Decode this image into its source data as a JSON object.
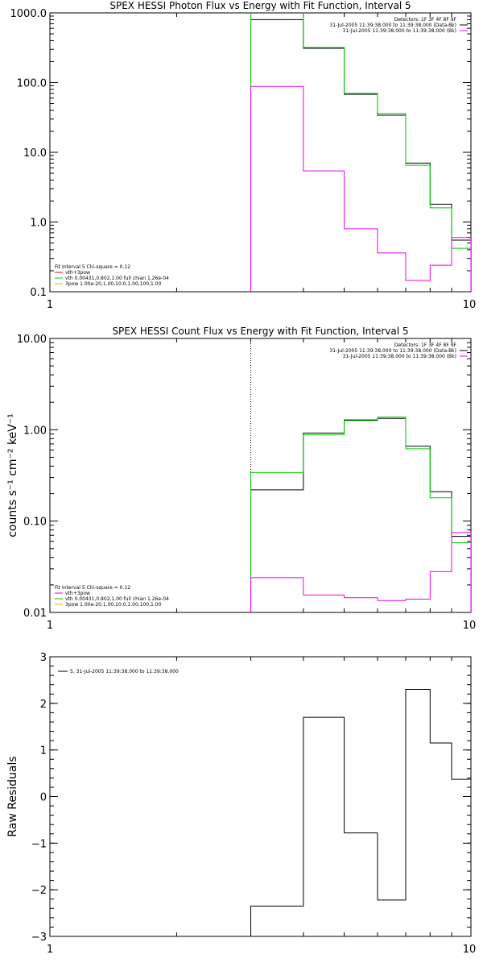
{
  "chart_data": [
    {
      "type": "line",
      "title": "SPEX HESSI Photon Flux vs Energy with Fit Function, Interval 5",
      "xlabel": "",
      "ylabel": "",
      "xscale": "log",
      "yscale": "log",
      "xlim": [
        1,
        10
      ],
      "ylim": [
        0.1,
        1000
      ],
      "x_ticks": [
        "1",
        "10"
      ],
      "y_ticks": [
        {
          "v": 0.1,
          "label": "0.1"
        },
        {
          "v": 1,
          "label": "1.0"
        },
        {
          "v": 10,
          "label": "10.0"
        },
        {
          "v": 100,
          "label": "100.0"
        },
        {
          "v": 1000,
          "label": "1000.0"
        }
      ],
      "x_edges": [
        3,
        4,
        5,
        6,
        7,
        8,
        9,
        10
      ],
      "vline_x": 3,
      "series": [
        {
          "name": "",
          "color": "#000000",
          "values": [
            800,
            310,
            68,
            34,
            7,
            1.8,
            0.55
          ]
        },
        {
          "name": "",
          "color": "#00cc00",
          "values": [
            1500,
            320,
            70,
            36,
            6.5,
            1.6,
            0.42
          ]
        },
        {
          "name": "",
          "color": "#ee00ee",
          "values": [
            88,
            5.4,
            0.8,
            0.36,
            0.145,
            0.24,
            0.6
          ]
        }
      ],
      "legend_right": {
        "lines": [
          "Detectors: 1F 3F 4F 8F 9F",
          "31-Jul-2005 11:39:38.000 to 11:39:38.000 (Data-Bk)",
          "31-Jul-2005 11:39:38.000 to 11:39:38.000 (Bk)"
        ],
        "colors": [
          "",
          "#000000",
          "#ee00ee"
        ]
      },
      "legend_left": {
        "lines": [
          "Fit Interval 5   Chi-square = 0.12",
          "vth+3pow",
          "vth 0.00431,0.802,1.00   full chian 1.26e-04",
          "3pow 1.00e-20,1.00,10.0,1.00,100,1.00"
        ],
        "colors": [
          "",
          "#ff0000",
          "#00cc00",
          "#e8b000"
        ]
      }
    },
    {
      "type": "line",
      "title": "SPEX HESSI Count Flux vs Energy with Fit Function, Interval 5",
      "xlabel": "",
      "ylabel": "counts s⁻¹ cm⁻² keV⁻¹",
      "xscale": "log",
      "yscale": "log",
      "xlim": [
        1,
        10
      ],
      "ylim": [
        0.01,
        10
      ],
      "x_ticks": [
        "1",
        "10"
      ],
      "y_ticks": [
        {
          "v": 0.01,
          "label": "0.01"
        },
        {
          "v": 0.1,
          "label": "0.10"
        },
        {
          "v": 1,
          "label": "1.00"
        },
        {
          "v": 10,
          "label": "10.00"
        }
      ],
      "x_edges": [
        3,
        4,
        5,
        6,
        7,
        8,
        9,
        10
      ],
      "vline_x": 3,
      "series": [
        {
          "name": "",
          "color": "#000000",
          "values": [
            0.22,
            0.92,
            1.28,
            1.33,
            0.66,
            0.21,
            0.068
          ]
        },
        {
          "name": "",
          "color": "#00cc00",
          "values": [
            0.34,
            0.88,
            1.26,
            1.38,
            0.62,
            0.18,
            0.058
          ]
        },
        {
          "name": "",
          "color": "#ee00ee",
          "values": [
            0.024,
            0.0155,
            0.0145,
            0.0135,
            0.014,
            0.028,
            0.075
          ]
        }
      ],
      "legend_right": {
        "lines": [
          "Detectors: 1F 3F 4F 8F 9F",
          "31-Jul-2005 11:39:38.000 to 11:39:38.000 (Data-Bk)",
          "31-Jul-2005 11:39:38.000 to 11:39:38.000 (Bk)"
        ],
        "colors": [
          "",
          "#000000",
          "#ee00ee"
        ]
      },
      "legend_left": {
        "lines": [
          "Fit Interval 5   Chi-square = 0.12",
          "vth+3pow",
          "vth 0.00431,0.802,1.00   full chian 1.26e-04",
          "3pow 1.00e-20,1.00,10.0,1.00,100,1.00"
        ],
        "colors": [
          "",
          "#ee00ee",
          "#00cc00",
          "#e8b000"
        ]
      }
    },
    {
      "type": "line",
      "title": "",
      "xlabel": "",
      "ylabel": "Raw Residuals",
      "xscale": "log",
      "yscale": "linear",
      "xlim": [
        1,
        10
      ],
      "ylim": [
        -3,
        3
      ],
      "x_ticks": [
        "1",
        "10"
      ],
      "y_ticks": [
        {
          "v": -3,
          "label": "−3"
        },
        {
          "v": -2,
          "label": "−2"
        },
        {
          "v": -1,
          "label": "−1"
        },
        {
          "v": 0,
          "label": "0"
        },
        {
          "v": 1,
          "label": "1"
        },
        {
          "v": 2,
          "label": "2"
        },
        {
          "v": 3,
          "label": "3"
        }
      ],
      "x_edges": [
        3,
        4,
        5,
        6,
        7,
        8,
        9,
        10
      ],
      "vline_x": null,
      "series": [
        {
          "name": "5, 31-Jul-2005 11:39:38.000 to 11:39:38.000",
          "color": "#000000",
          "values": [
            -2.35,
            1.7,
            -0.78,
            -2.22,
            2.3,
            1.15,
            0.37
          ]
        }
      ],
      "legend_right": {
        "lines": [],
        "colors": []
      },
      "legend_left": {
        "lines": [],
        "colors": []
      }
    }
  ]
}
